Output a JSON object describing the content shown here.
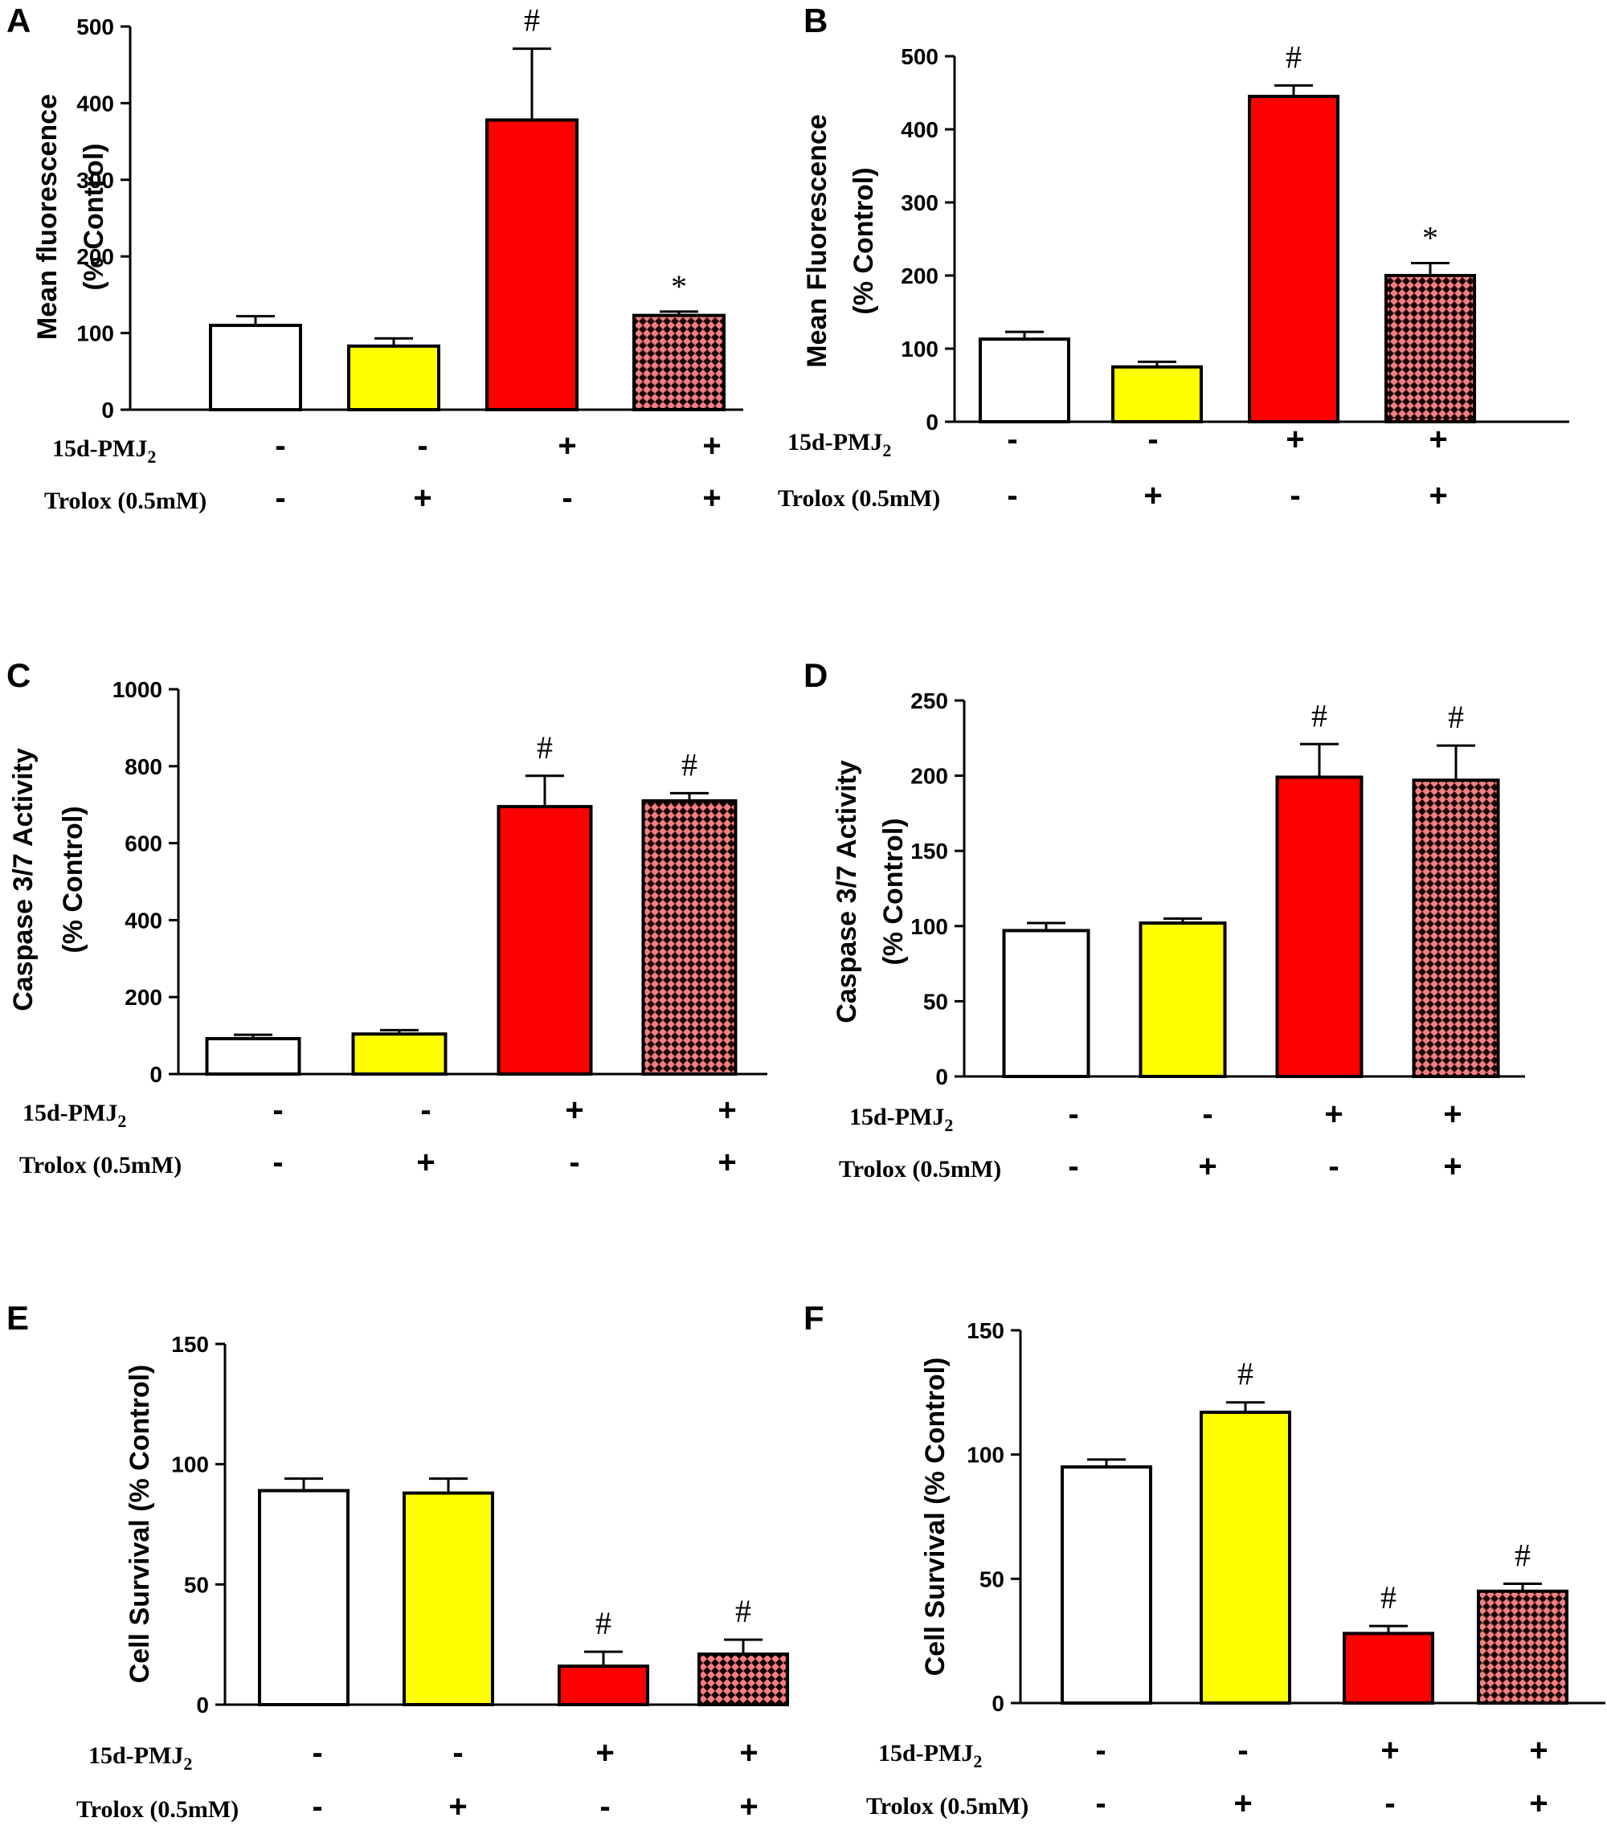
{
  "colors": {
    "control": "#ffffff",
    "trolox": "#ffff00",
    "pmj2": "#ff0000",
    "pmj2_trolox_pattern": "crosshatch-red-on-black",
    "pattern_fg": "#f08080",
    "pattern_bg": "#1a0000",
    "axis": "#000000"
  },
  "row_labels": {
    "pmj2_prefix": "15d-PMJ",
    "pmj2_subscript": "2",
    "trolox": "Trolox (0.5mM)"
  },
  "treatments": {
    "pmj2": [
      "-",
      "-",
      "+",
      "+"
    ],
    "trolox": [
      "-",
      "+",
      "-",
      "+"
    ]
  },
  "chart_data": [
    {
      "panel": "A",
      "type": "bar",
      "ylabel_lines": [
        "Mean fluorescence",
        "(% Control)"
      ],
      "ylim": [
        0,
        500
      ],
      "yticks": [
        0,
        100,
        200,
        300,
        400,
        500
      ],
      "values": [
        110,
        83,
        378,
        123
      ],
      "errors": [
        12,
        10,
        93,
        5
      ],
      "annotations": [
        "",
        "",
        "#",
        "*"
      ]
    },
    {
      "panel": "B",
      "type": "bar",
      "ylabel_lines": [
        "Mean Fluorescence",
        "(% Control)"
      ],
      "ylim": [
        0,
        500
      ],
      "yticks": [
        0,
        100,
        200,
        300,
        400,
        500
      ],
      "values": [
        113,
        75,
        445,
        200
      ],
      "errors": [
        10,
        7,
        15,
        17
      ],
      "annotations": [
        "",
        "",
        "#",
        "*"
      ]
    },
    {
      "panel": "C",
      "type": "bar",
      "ylabel_lines": [
        "Caspase 3/7 Activity",
        "(% Control)"
      ],
      "ylim": [
        0,
        1000
      ],
      "yticks": [
        0,
        200,
        400,
        600,
        800,
        1000
      ],
      "values": [
        92,
        104,
        695,
        710
      ],
      "errors": [
        10,
        10,
        80,
        20
      ],
      "annotations": [
        "",
        "",
        "#",
        "#"
      ]
    },
    {
      "panel": "D",
      "type": "bar",
      "ylabel_lines": [
        "Caspase 3/7 Activity",
        "(% Control)"
      ],
      "ylim": [
        0,
        250
      ],
      "yticks": [
        0,
        50,
        100,
        150,
        200,
        250
      ],
      "values": [
        97,
        102,
        199,
        197
      ],
      "errors": [
        5,
        3,
        22,
        23
      ],
      "annotations": [
        "",
        "",
        "#",
        "#"
      ]
    },
    {
      "panel": "E",
      "type": "bar",
      "ylabel_lines": [
        "Cell Survival (% Control)"
      ],
      "ylim": [
        0,
        150
      ],
      "yticks": [
        0,
        50,
        100,
        150
      ],
      "values": [
        89,
        88,
        16,
        21
      ],
      "errors": [
        5,
        6,
        6,
        6
      ],
      "annotations": [
        "",
        "",
        "#",
        "#"
      ]
    },
    {
      "panel": "F",
      "type": "bar",
      "ylabel_lines": [
        "Cell Survival (% Control)"
      ],
      "ylim": [
        0,
        150
      ],
      "yticks": [
        0,
        50,
        100,
        150
      ],
      "values": [
        95,
        117,
        28,
        45
      ],
      "errors": [
        3,
        4,
        3,
        3
      ],
      "annotations": [
        "",
        "#",
        "#",
        "#"
      ]
    }
  ]
}
